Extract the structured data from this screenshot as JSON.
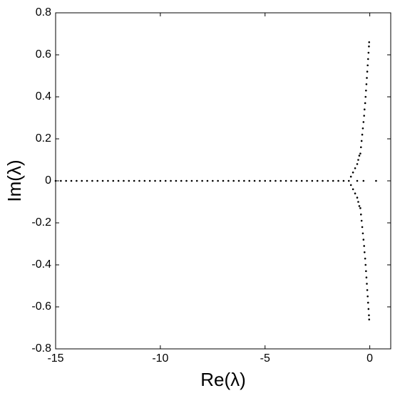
{
  "chart_data": {
    "type": "scatter",
    "x_label": "Re(λ)",
    "y_label": "Im(λ)",
    "xlim": [
      -15,
      1
    ],
    "ylim": [
      -0.8,
      0.8
    ],
    "xticks": [
      -15,
      -10,
      -5,
      0
    ],
    "yticks": [
      -0.8,
      -0.6,
      -0.4,
      -0.2,
      0,
      0.2,
      0.4,
      0.6,
      0.8
    ],
    "color": "#000000",
    "series": [
      {
        "x": [
          -15,
          -14.75,
          -14.5,
          -14.25,
          -14,
          -13.75,
          -13.5,
          -13.25,
          -13,
          -12.75,
          -12.5,
          -12.25,
          -12,
          -11.75,
          -11.5,
          -11.25,
          -11,
          -10.75,
          -10.5,
          -10.25,
          -10,
          -9.75,
          -9.5,
          -9.25,
          -9,
          -8.75,
          -8.5,
          -8.25,
          -8,
          -7.75,
          -7.5,
          -7.25,
          -7,
          -6.75,
          -6.5,
          -6.25,
          -6,
          -5.75,
          -5.5,
          -5.25,
          -5,
          -4.75,
          -4.5,
          -4.25,
          -4,
          -3.75,
          -3.5,
          -3.25,
          -3,
          -2.75,
          -2.5,
          -2.25,
          -2,
          -1.75,
          -1.5,
          -1.25,
          -1,
          -0.6,
          -0.3,
          0.3
        ],
        "values": [
          0,
          0,
          0,
          0,
          0,
          0,
          0,
          0,
          0,
          0,
          0,
          0,
          0,
          0,
          0,
          0,
          0,
          0,
          0,
          0,
          0,
          0,
          0,
          0,
          0,
          0,
          0,
          0,
          0,
          0,
          0,
          0,
          0,
          0,
          0,
          0,
          0,
          0,
          0,
          0,
          0,
          0,
          0,
          0,
          0,
          0,
          0,
          0,
          0,
          0,
          0,
          0,
          0,
          0,
          0,
          0,
          0,
          0,
          0,
          0
        ]
      },
      {
        "x": [
          -0.45,
          -0.42,
          -0.39,
          -0.36,
          -0.33,
          -0.3,
          -0.27,
          -0.25,
          -0.22,
          -0.2,
          -0.18,
          -0.16,
          -0.14,
          -0.12,
          -0.1,
          -0.08,
          -0.06,
          -0.04,
          -0.03,
          -0.45,
          -0.42,
          -0.39,
          -0.36,
          -0.33,
          -0.3,
          -0.27,
          -0.25,
          -0.22,
          -0.2,
          -0.18,
          -0.16,
          -0.14,
          -0.12,
          -0.1,
          -0.08,
          -0.06,
          -0.04,
          -0.03,
          -0.9,
          -0.8,
          -0.7,
          -0.6,
          -0.55,
          -0.5,
          -0.9,
          -0.8,
          -0.7,
          -0.6,
          -0.55,
          -0.5
        ],
        "values": [
          0.13,
          0.16,
          0.19,
          0.22,
          0.25,
          0.28,
          0.31,
          0.34,
          0.37,
          0.4,
          0.43,
          0.46,
          0.49,
          0.52,
          0.55,
          0.58,
          0.61,
          0.64,
          0.66,
          -0.13,
          -0.16,
          -0.19,
          -0.22,
          -0.25,
          -0.28,
          -0.31,
          -0.34,
          -0.37,
          -0.4,
          -0.43,
          -0.46,
          -0.49,
          -0.52,
          -0.55,
          -0.58,
          -0.61,
          -0.64,
          -0.66,
          0.02,
          0.04,
          0.06,
          0.08,
          0.1,
          0.12,
          -0.02,
          -0.04,
          -0.06,
          -0.08,
          -0.1,
          -0.12
        ]
      }
    ]
  }
}
